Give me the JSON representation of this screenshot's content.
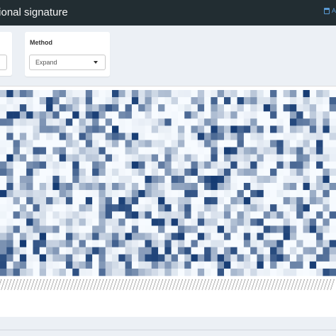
{
  "header": {
    "title": "tional signature",
    "corner_text": "A"
  },
  "controls": {
    "method": {
      "label": "Method",
      "selected": "Expand"
    }
  },
  "heatmap": {
    "color_low": "#f7fbff",
    "color_high": "#08306b"
  }
}
